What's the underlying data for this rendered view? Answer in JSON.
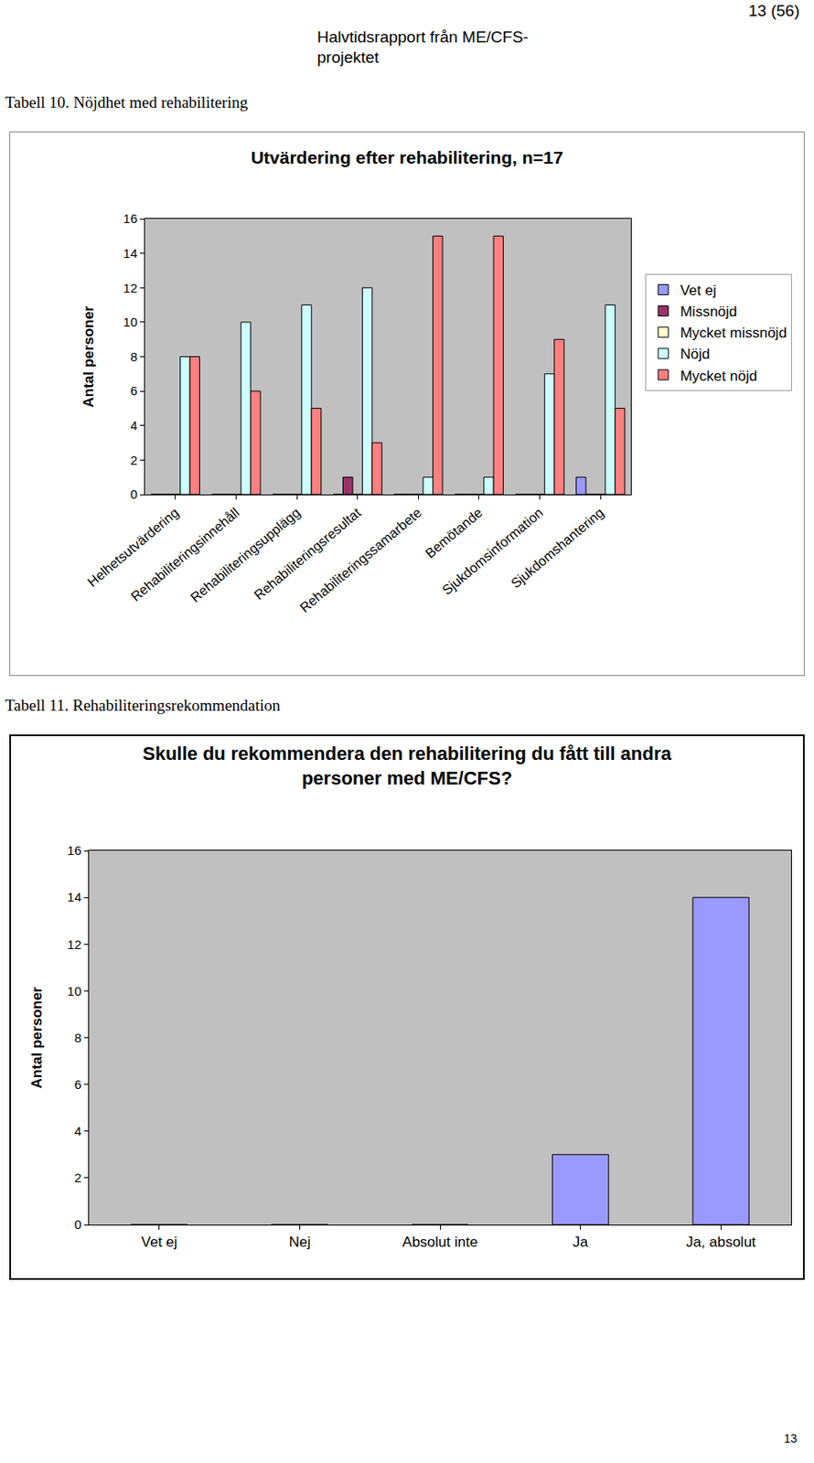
{
  "header": {
    "page": "13 (56)",
    "running_title": [
      "Halvtidsrapport från ME/CFS-",
      "projektet"
    ]
  },
  "captions": [
    "Tabell 10. Nöjdhet med rehabilitering",
    "Tabell 11. Rehabiliteringsrekommendation"
  ],
  "footer": {
    "page_number": "13"
  },
  "chart_data": [
    {
      "type": "bar",
      "title": "Utvärdering efter rehabilitering, n=17",
      "y_label": "Antal personer",
      "categories": [
        "Helhetsutvärdering",
        "Rehabiliteringsinnehåll",
        "Rehabiliteringsupplägg",
        "Rehabiliteringsresultat",
        "Rehabiliteringssamarbete",
        "Bemötande",
        "Sjukdomsinformation",
        "Sjukdomshantering"
      ],
      "series": [
        {
          "name": "Vet ej",
          "color": "#9999ff",
          "values": [
            0,
            0,
            0,
            0,
            0,
            0,
            0,
            1
          ]
        },
        {
          "name": "Missnöjd",
          "color": "#993366",
          "values": [
            0,
            0,
            0,
            1,
            0,
            0,
            0,
            0
          ]
        },
        {
          "name": "Mycket missnöjd",
          "color": "#ffffcc",
          "values": [
            0,
            0,
            0,
            0,
            0,
            0,
            0,
            0
          ]
        },
        {
          "name": "Nöjd",
          "color": "#ccffff",
          "values": [
            8,
            10,
            11,
            12,
            1,
            1,
            7,
            11
          ]
        },
        {
          "name": "Mycket nöjd",
          "color": "#ff8080",
          "values": [
            8,
            6,
            5,
            3,
            15,
            15,
            9,
            5
          ]
        }
      ],
      "ylim": [
        0,
        16
      ],
      "yticks": [
        0,
        2,
        4,
        6,
        8,
        10,
        12,
        14,
        16
      ],
      "grid": false,
      "legend": "right"
    },
    {
      "type": "bar",
      "title": "Skulle du rekommendera den rehabilitering du fått till andra\npersoner med ME/CFS?",
      "y_label": "Antal personer",
      "categories": [
        "Vet ej",
        "Nej",
        "Absolut inte",
        "Ja",
        "Ja, absolut"
      ],
      "values": [
        0,
        0,
        0,
        3,
        14
      ],
      "color": "#9999ff",
      "ylim": [
        0,
        16
      ],
      "yticks": [
        0,
        2,
        4,
        6,
        8,
        10,
        12,
        14,
        16
      ],
      "grid": false
    }
  ]
}
